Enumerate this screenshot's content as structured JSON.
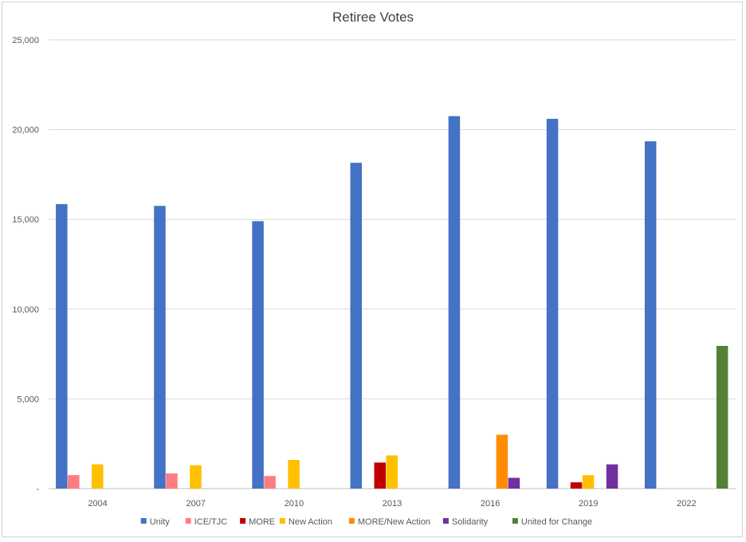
{
  "chart_data": {
    "type": "bar",
    "title": "Retiree Votes",
    "xlabel": "",
    "ylabel": "",
    "ylim": [
      0,
      25000
    ],
    "yticks": [
      0,
      5000,
      10000,
      15000,
      20000,
      25000
    ],
    "ytick_labels": [
      "-",
      "5,000",
      "10,000",
      "15,000",
      "20,000",
      "25,000"
    ],
    "grid": true,
    "legend_position": "bottom",
    "categories": [
      "2004",
      "2007",
      "2010",
      "2013",
      "2016",
      "2019",
      "2022"
    ],
    "series": [
      {
        "name": "Unity",
        "color": "#4472C4",
        "values": [
          15850,
          15750,
          14900,
          18150,
          20750,
          20600,
          19350
        ]
      },
      {
        "name": "ICE/TJC",
        "color": "#FF7C80",
        "values": [
          750,
          850,
          700,
          null,
          null,
          null,
          null
        ]
      },
      {
        "name": "MORE",
        "color": "#C00000",
        "values": [
          null,
          null,
          null,
          1450,
          null,
          350,
          null
        ]
      },
      {
        "name": "New Action",
        "color": "#FFC000",
        "values": [
          1350,
          1300,
          1600,
          1850,
          null,
          750,
          null
        ]
      },
      {
        "name": "MORE/New Action",
        "color": "#FF8C00",
        "values": [
          null,
          null,
          null,
          null,
          3000,
          null,
          null
        ]
      },
      {
        "name": "Solidarity",
        "color": "#7030A0",
        "values": [
          null,
          null,
          null,
          null,
          600,
          1350,
          null
        ]
      },
      {
        "name": "United for Change",
        "color": "#548235",
        "values": [
          null,
          null,
          null,
          null,
          null,
          null,
          7950
        ]
      }
    ]
  }
}
